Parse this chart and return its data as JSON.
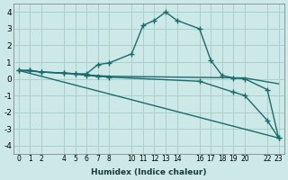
{
  "xlabel": "Humidex (Indice chaleur)",
  "background_color": "#cce9e8",
  "grid_color": "#aacfce",
  "line_color": "#1a6b6b",
  "xlim": [
    -0.5,
    23.5
  ],
  "ylim": [
    -4.5,
    4.5
  ],
  "xticks": [
    0,
    1,
    2,
    4,
    5,
    6,
    7,
    8,
    10,
    11,
    12,
    13,
    14,
    16,
    17,
    18,
    19,
    20,
    22,
    23
  ],
  "yticks": [
    -4,
    -3,
    -2,
    -1,
    0,
    1,
    2,
    3,
    4
  ],
  "lines": [
    {
      "x": [
        0,
        1,
        2,
        4,
        5,
        6,
        7,
        8,
        10,
        11,
        12,
        13,
        14,
        16,
        17,
        18,
        19,
        20,
        22,
        23
      ],
      "y": [
        0.5,
        0.5,
        0.4,
        0.35,
        0.3,
        0.3,
        0.85,
        0.95,
        1.5,
        3.2,
        3.5,
        4.0,
        3.5,
        3.0,
        1.1,
        0.2,
        0.05,
        0.0,
        -0.65,
        -3.55
      ],
      "marker": "+",
      "lw": 1.0
    },
    {
      "x": [
        0,
        8,
        20,
        23
      ],
      "y": [
        0.5,
        0.15,
        0.05,
        -0.3
      ],
      "marker": null,
      "lw": 1.0
    },
    {
      "x": [
        0,
        1,
        2,
        4,
        5,
        6,
        7,
        8,
        16,
        19,
        20,
        22,
        23
      ],
      "y": [
        0.5,
        0.5,
        0.4,
        0.35,
        0.3,
        0.2,
        0.15,
        0.1,
        -0.15,
        -0.8,
        -1.0,
        -2.5,
        -3.55
      ],
      "marker": "+",
      "lw": 1.0
    },
    {
      "x": [
        0,
        23
      ],
      "y": [
        0.5,
        -3.55
      ],
      "marker": null,
      "lw": 1.0
    }
  ]
}
